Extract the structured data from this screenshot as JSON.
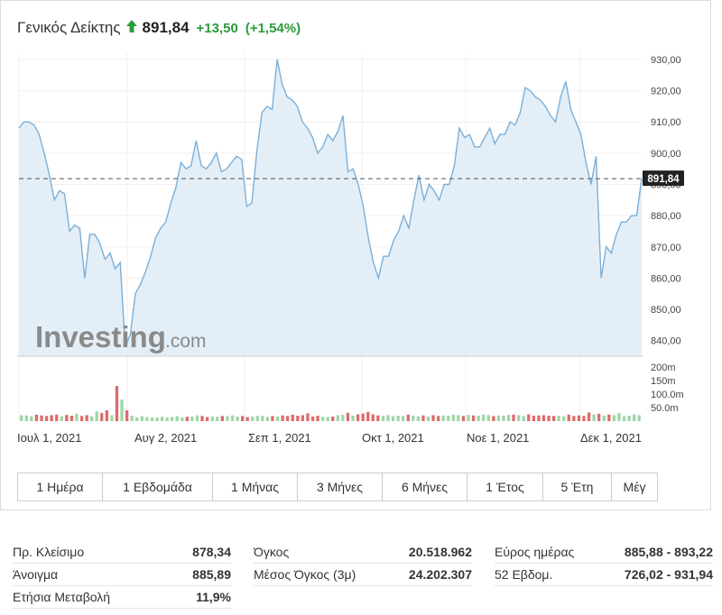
{
  "header": {
    "name": "Γενικός Δείκτης",
    "price": "891,84",
    "change": "+13,50",
    "change_pct": "(+1,54%)",
    "up_color": "#2a9d3a"
  },
  "watermark": {
    "brand": "Investing",
    "suffix": ".com"
  },
  "price_tag": "891,84",
  "chart_data": {
    "type": "line",
    "ylim": [
      835,
      932
    ],
    "y_ticks": [
      "930,00",
      "920,00",
      "910,00",
      "900,00",
      "890,00",
      "880,00",
      "870,00",
      "860,00",
      "850,00",
      "840,00"
    ],
    "y_tick_values": [
      930,
      920,
      910,
      900,
      890,
      880,
      870,
      860,
      850,
      840
    ],
    "last_value": 891.84,
    "x_ticks": [
      "Ιουλ 1, 2021",
      "Αυγ 2, 2021",
      "Σεπ 1, 2021",
      "Οκτ 1, 2021",
      "Νοε 1, 2021",
      "Δεκ 1, 2021"
    ],
    "line_color": "#7ab0d8",
    "fill_color": "#e4eef7",
    "values": [
      908,
      910,
      910,
      909,
      906,
      900,
      893,
      885,
      888,
      887,
      875,
      877,
      876,
      860,
      874,
      874,
      871,
      866,
      868,
      863,
      865,
      838,
      842,
      855,
      858,
      862,
      867,
      873,
      876,
      878,
      884,
      889,
      897,
      895,
      896,
      904,
      896,
      895,
      897,
      900,
      894,
      895,
      897,
      899,
      898,
      883,
      884,
      901,
      913,
      915,
      914,
      930,
      922,
      918,
      917,
      915,
      910,
      908,
      905,
      900,
      902,
      906,
      904,
      907,
      912,
      894,
      895,
      890,
      883,
      873,
      865,
      860,
      867,
      867,
      872,
      875,
      880,
      876,
      885,
      893,
      885,
      890,
      888,
      885,
      890,
      890,
      896,
      908,
      905,
      906,
      902,
      902,
      905,
      908,
      903,
      906,
      906,
      910,
      909,
      913,
      921,
      920,
      918,
      917,
      915,
      912,
      910,
      918,
      923,
      914,
      910,
      906,
      897,
      890,
      899,
      860,
      870,
      868,
      874,
      878,
      878,
      880,
      880,
      891.84
    ],
    "volume_ticks": [
      "200m",
      "150m",
      "100.0m",
      "50.0m"
    ],
    "volume_tick_values": [
      200,
      150,
      100,
      50
    ],
    "volume_max": 220,
    "volumes": [
      22,
      21,
      18,
      24,
      21,
      19,
      22,
      24,
      18,
      23,
      20,
      28,
      19,
      22,
      18,
      36,
      30,
      40,
      22,
      130,
      80,
      40,
      20,
      14,
      18,
      15,
      14,
      13,
      16,
      14,
      15,
      18,
      14,
      16,
      17,
      21,
      19,
      15,
      17,
      16,
      19,
      18,
      21,
      17,
      19,
      15,
      17,
      19,
      20,
      16,
      19,
      17,
      21,
      19,
      24,
      20,
      22,
      29,
      17,
      20,
      16,
      15,
      17,
      22,
      23,
      31,
      20,
      25,
      28,
      34,
      25,
      21,
      19,
      22,
      18,
      20,
      19,
      24,
      20,
      18,
      21,
      17,
      22,
      19,
      21,
      20,
      24,
      22,
      19,
      23,
      21,
      20,
      24,
      22,
      19,
      21,
      20,
      23,
      24,
      22,
      19,
      25,
      20,
      21,
      22,
      20,
      19,
      20,
      18,
      24,
      19,
      21,
      19,
      32,
      25,
      27,
      20,
      24,
      22,
      30,
      18,
      20,
      25,
      22
    ],
    "volume_up_color": "#9fd6a8",
    "volume_down_color": "#de6b6b"
  },
  "tabs": [
    "1 Ημέρα",
    "1 Εβδομάδα",
    "1 Μήνας",
    "3 Μήνες",
    "6 Μήνες",
    "1 Έτος",
    "5 Έτη",
    "Μέγ"
  ],
  "stats": {
    "col1": [
      {
        "label": "Πρ. Κλείσιμο",
        "value": "878,34"
      },
      {
        "label": "Άνοιγμα",
        "value": "885,89"
      },
      {
        "label": "Ετήσια Μεταβολή",
        "value": "11,9%"
      }
    ],
    "col2": [
      {
        "label": "Όγκος",
        "value": "20.518.962"
      },
      {
        "label": "Μέσος Όγκος (3μ)",
        "value": "24.202.307"
      }
    ],
    "col3": [
      {
        "label": "Εύρος ημέρας",
        "value": "885,88 - 893,22"
      },
      {
        "label": "52 Εβδομ.",
        "value": "726,02 - 931,94"
      }
    ]
  }
}
